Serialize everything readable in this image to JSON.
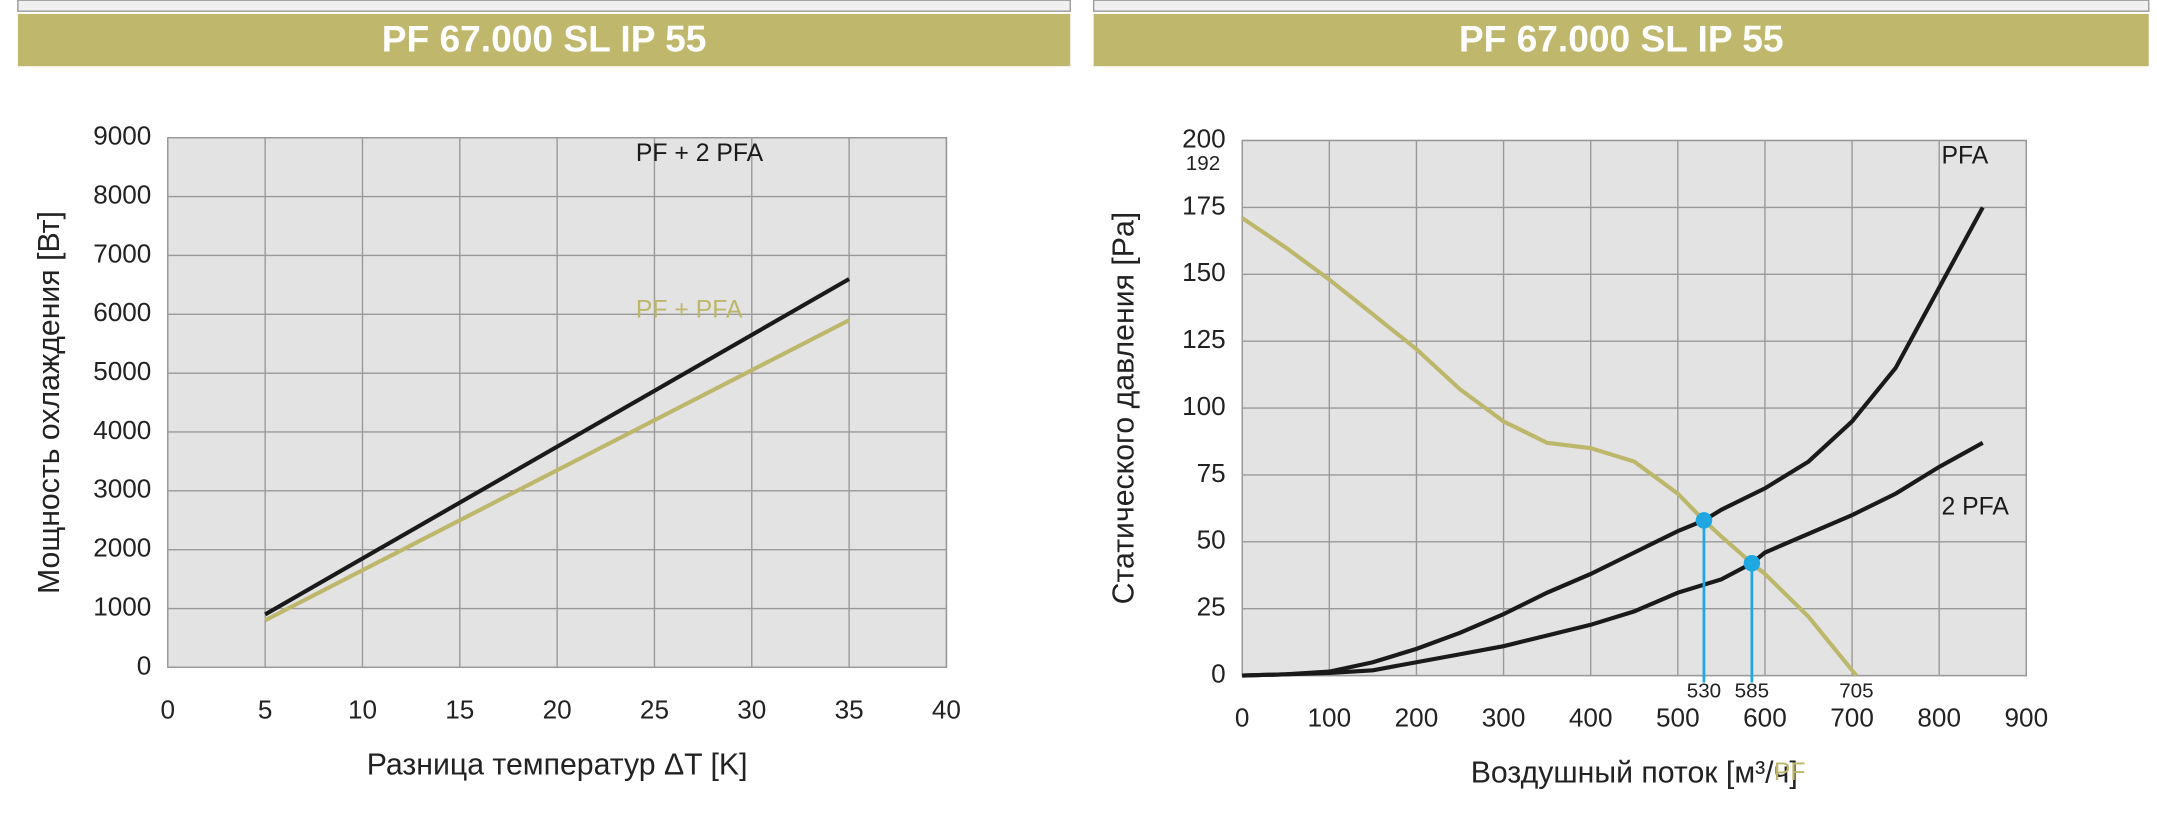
{
  "chart_data": [
    {
      "type": "line",
      "title": "PF 67.000 SL IP 55",
      "x_label": "Разница температур ΔT [K]",
      "y_label": "Мощность охлаждения [Вт]",
      "xlim": [
        0,
        40
      ],
      "xticks": [
        0,
        5,
        10,
        15,
        20,
        25,
        30,
        35,
        40
      ],
      "ylim": [
        0,
        9000
      ],
      "yticks": [
        0,
        1000,
        2000,
        3000,
        4000,
        5000,
        6000,
        7000,
        8000,
        9000
      ],
      "grid": true,
      "series": [
        {
          "name": "PF + 2 PFA",
          "color": "#1a1a1a",
          "x": [
            5,
            35
          ],
          "values": [
            900,
            6600
          ]
        },
        {
          "name": "PF + PFA",
          "color": "#bdb76b",
          "x": [
            5,
            35
          ],
          "values": [
            800,
            5900
          ]
        }
      ]
    },
    {
      "type": "line",
      "title": "PF 67.000 SL IP 55",
      "x_label": "Воздушный поток [м³/ч]",
      "y_label": "Статического давления [Pa]",
      "xlim": [
        0,
        900
      ],
      "xticks": [
        0,
        100,
        200,
        300,
        400,
        500,
        600,
        700,
        800,
        900
      ],
      "ylim": [
        0,
        200
      ],
      "yticks": [
        0,
        25,
        50,
        75,
        100,
        125,
        150,
        175,
        200
      ],
      "grid": true,
      "y_annotations": [
        {
          "value": 192,
          "label": "192"
        }
      ],
      "x_annotations": [
        {
          "value": 530,
          "label": "530"
        },
        {
          "value": 585,
          "label": "585"
        },
        {
          "value": 705,
          "label": "705"
        }
      ],
      "operating_points": {
        "color": "#1ea7e1",
        "x": [
          530,
          585
        ],
        "values": [
          58,
          42
        ]
      },
      "series": [
        {
          "name": "PFA",
          "color": "#1a1a1a",
          "x": [
            0,
            50,
            100,
            150,
            200,
            250,
            300,
            350,
            400,
            450,
            500,
            530,
            550,
            600,
            650,
            700,
            750,
            800,
            850
          ],
          "values": [
            0,
            0.5,
            1.5,
            5,
            10,
            16,
            23,
            31,
            38,
            46,
            54,
            58,
            62,
            70,
            80,
            95,
            115,
            145,
            175
          ]
        },
        {
          "name": "2 PFA",
          "color": "#1a1a1a",
          "x": [
            0,
            100,
            150,
            200,
            250,
            300,
            350,
            400,
            450,
            500,
            550,
            585,
            600,
            650,
            700,
            750,
            800,
            850
          ],
          "values": [
            0,
            1,
            2,
            5,
            8,
            11,
            15,
            19,
            24,
            31,
            36,
            42,
            46,
            53,
            60,
            68,
            78,
            87
          ]
        },
        {
          "name": "PF",
          "color": "#bdb76b",
          "x": [
            0,
            50,
            100,
            150,
            200,
            250,
            300,
            350,
            400,
            450,
            500,
            530,
            550,
            585,
            600,
            650,
            705
          ],
          "values": [
            171,
            160,
            148,
            135,
            122,
            107,
            95,
            87,
            85,
            80,
            68,
            58,
            52,
            42,
            38,
            22,
            0
          ]
        }
      ]
    }
  ]
}
